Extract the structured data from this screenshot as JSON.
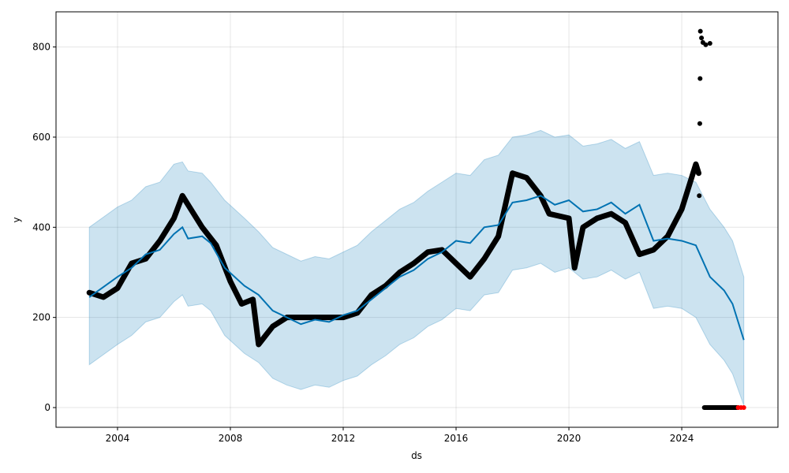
{
  "chart_data": {
    "type": "line",
    "title": "",
    "xlabel": "ds",
    "ylabel": "y",
    "xlim": [
      2001.82,
      2027.41
    ],
    "ylim": [
      -43.7,
      878
    ],
    "xticks": [
      2004,
      2008,
      2012,
      2016,
      2020,
      2024
    ],
    "xtick_labels": [
      "2004",
      "2008",
      "2012",
      "2016",
      "2020",
      "2024"
    ],
    "yticks": [
      0,
      200,
      400,
      600,
      800
    ],
    "ytick_labels": [
      "0",
      "200",
      "400",
      "600",
      "800"
    ],
    "grid": true,
    "colors": {
      "forecast": "#0072B2",
      "interval": "#0072B2",
      "actual": "#000000",
      "future_points": "#ff0000"
    },
    "forecast": {
      "x": [
        2003.0,
        2004.0,
        2004.5,
        2005.0,
        2005.5,
        2006.0,
        2006.3,
        2006.5,
        2007.0,
        2007.3,
        2007.8,
        2008.5,
        2009.0,
        2009.5,
        2010.0,
        2010.5,
        2011.0,
        2011.5,
        2012.0,
        2012.5,
        2013.0,
        2013.5,
        2014.0,
        2014.5,
        2015.0,
        2015.5,
        2016.0,
        2016.5,
        2017.0,
        2017.5,
        2018.0,
        2018.5,
        2019.0,
        2019.5,
        2020.0,
        2020.5,
        2021.0,
        2021.5,
        2022.0,
        2022.5,
        2023.0,
        2023.5,
        2024.0,
        2024.5,
        2025.0,
        2025.5,
        2025.8,
        2026.2
      ],
      "yhat": [
        245,
        290,
        310,
        340,
        350,
        385,
        400,
        375,
        380,
        365,
        310,
        270,
        250,
        215,
        200,
        185,
        195,
        190,
        205,
        215,
        240,
        265,
        290,
        305,
        330,
        345,
        370,
        365,
        400,
        405,
        455,
        460,
        470,
        450,
        460,
        435,
        440,
        455,
        430,
        450,
        370,
        375,
        370,
        360,
        290,
        260,
        230,
        150
      ],
      "yhat_upper": [
        400,
        445,
        460,
        490,
        500,
        540,
        545,
        525,
        520,
        500,
        460,
        420,
        390,
        355,
        340,
        325,
        335,
        330,
        345,
        360,
        390,
        415,
        440,
        455,
        480,
        500,
        520,
        515,
        550,
        560,
        600,
        605,
        615,
        600,
        605,
        580,
        585,
        595,
        575,
        590,
        515,
        520,
        515,
        500,
        440,
        400,
        370,
        290
      ],
      "yhat_lower": [
        95,
        140,
        160,
        190,
        200,
        235,
        250,
        225,
        230,
        215,
        160,
        120,
        100,
        65,
        50,
        40,
        50,
        45,
        60,
        70,
        95,
        115,
        140,
        155,
        180,
        195,
        220,
        215,
        250,
        255,
        305,
        310,
        320,
        300,
        310,
        285,
        290,
        305,
        285,
        300,
        220,
        225,
        220,
        200,
        140,
        105,
        75,
        5
      ]
    },
    "actual": {
      "x": [
        2003.0,
        2003.5,
        2004.0,
        2004.5,
        2005.0,
        2005.5,
        2006.0,
        2006.3,
        2006.6,
        2007.0,
        2007.5,
        2008.0,
        2008.4,
        2008.8,
        2009.0,
        2009.5,
        2010.0,
        2011.0,
        2012.0,
        2012.5,
        2013.0,
        2013.5,
        2014.0,
        2014.5,
        2015.0,
        2015.5,
        2016.0,
        2016.5,
        2017.0,
        2017.5,
        2018.0,
        2018.5,
        2019.0,
        2019.3,
        2020.0,
        2020.2,
        2020.5,
        2021.0,
        2021.5,
        2022.0,
        2022.5,
        2023.0,
        2023.5,
        2024.0,
        2024.3,
        2024.5,
        2024.6
      ],
      "y": [
        255,
        245,
        265,
        320,
        330,
        370,
        420,
        470,
        440,
        400,
        360,
        280,
        230,
        240,
        140,
        180,
        200,
        200,
        200,
        210,
        250,
        270,
        300,
        320,
        345,
        350,
        320,
        290,
        330,
        380,
        520,
        510,
        470,
        430,
        420,
        310,
        400,
        420,
        430,
        410,
        340,
        350,
        380,
        440,
        500,
        540,
        520
      ]
    },
    "outliers": {
      "x": [
        2024.62,
        2024.64,
        2024.65,
        2024.66,
        2024.7,
        2024.75,
        2024.85,
        2025.0
      ],
      "y": [
        470,
        630,
        730,
        835,
        820,
        810,
        805,
        808
      ]
    },
    "zero_points": {
      "x_start": 2024.8,
      "x_end": 2026.0,
      "y": 0
    },
    "future_points": {
      "x": [
        2026.0,
        2026.1,
        2026.2
      ],
      "y": [
        0,
        0,
        0
      ]
    }
  }
}
